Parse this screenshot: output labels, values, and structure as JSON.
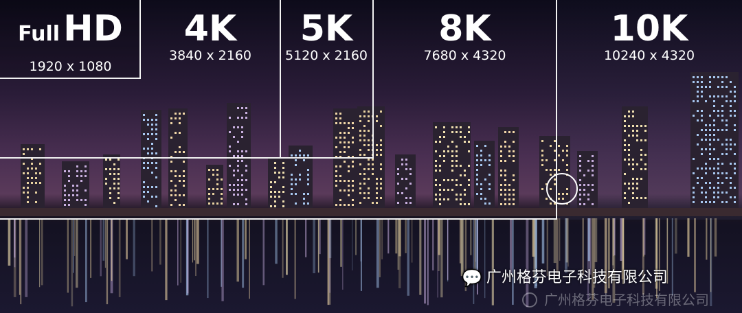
{
  "resolutions": [
    {
      "name_small": "Full",
      "name": "HD",
      "size": "1920 x 1080"
    },
    {
      "name": "4K",
      "size": "3840 x 2160"
    },
    {
      "name": "5K",
      "size": "5120 x 2160"
    },
    {
      "name": "8K",
      "size": "7680 x 4320"
    },
    {
      "name": "10K",
      "size": "10240 x 4320"
    }
  ],
  "watermark": {
    "text": "广州格芬电子科技有限公司",
    "icon": "wechat-icon",
    "faded_text": "广州格芬电子科技有限公司",
    "faded_icon": "company-logo-icon"
  },
  "colors": {
    "frame": "#f2f2f2",
    "text": "#ffffff"
  }
}
